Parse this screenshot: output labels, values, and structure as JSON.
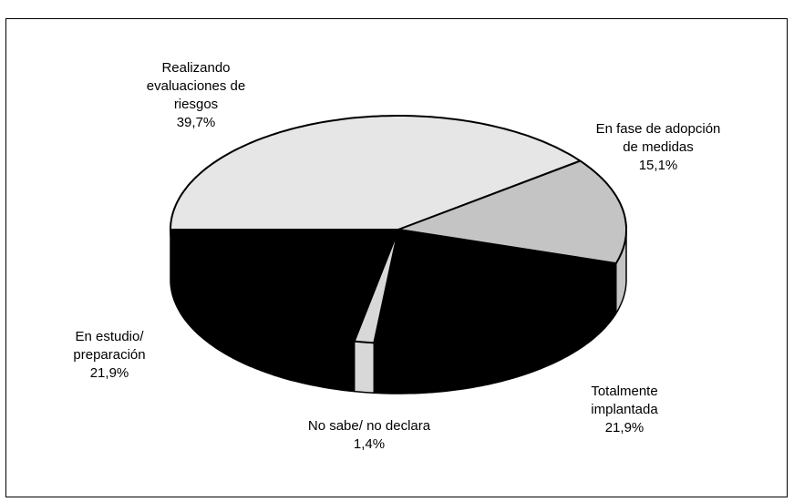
{
  "chart_data": {
    "type": "pie",
    "categories": [
      "Realizando evaluaciones de riesgos",
      "En fase de adopción de medidas",
      "Totalmente implantada",
      "No sabe/ no declara",
      "En estudio/ preparación"
    ],
    "values": [
      39.7,
      15.1,
      21.9,
      1.4,
      21.9
    ],
    "value_labels": [
      "39,7%",
      "15,1%",
      "21,9%",
      "1,4%",
      "21,9%"
    ],
    "colors": [
      "#e6e6e6",
      "#c4c4c4",
      "#000000",
      "#d8d8d8",
      "#000000"
    ]
  }
}
